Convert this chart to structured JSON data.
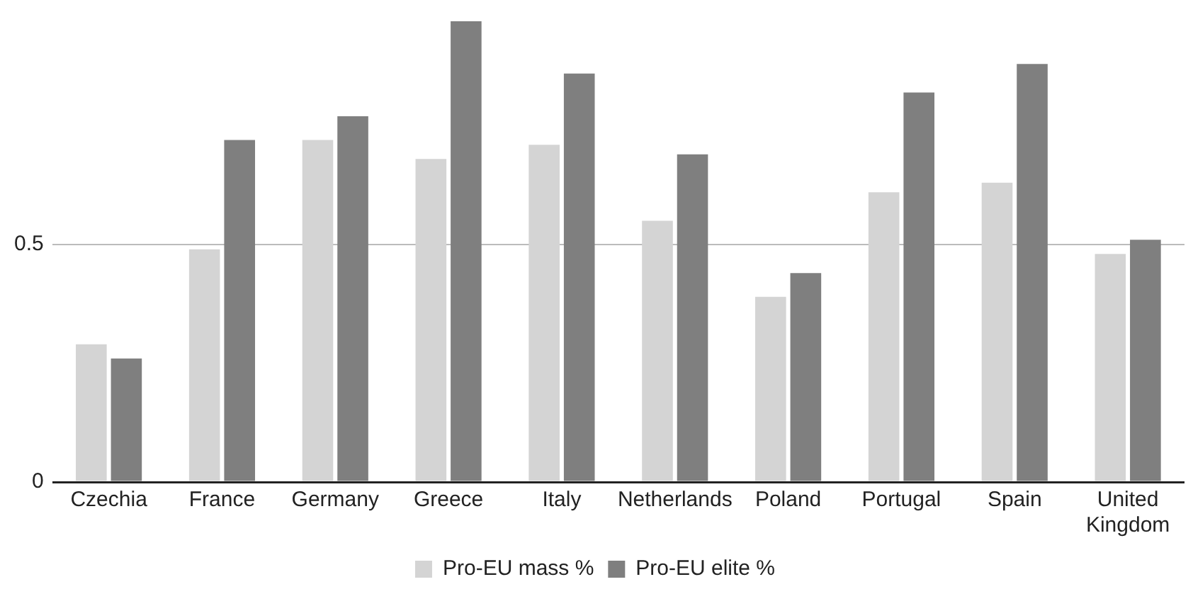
{
  "chart_data": {
    "type": "bar",
    "categories": [
      "Czechia",
      "France",
      "Germany",
      "Greece",
      "Italy",
      "Netherlands",
      "Poland",
      "Portugal",
      "Spain",
      "United Kingdom"
    ],
    "series": [
      {
        "name": "Pro-EU mass %",
        "color": "#d4d4d4",
        "values": [
          0.29,
          0.49,
          0.72,
          0.68,
          0.71,
          0.55,
          0.39,
          0.61,
          0.63,
          0.48
        ]
      },
      {
        "name": "Pro-EU elite %",
        "color": "#7f7f7f",
        "values": [
          0.26,
          0.72,
          0.77,
          0.97,
          0.86,
          0.69,
          0.44,
          0.82,
          0.88,
          0.51
        ]
      }
    ],
    "ylim": [
      0,
      0.97
    ],
    "yticks": [
      0,
      0.5
    ],
    "grid": "y",
    "legend": "bottom"
  }
}
